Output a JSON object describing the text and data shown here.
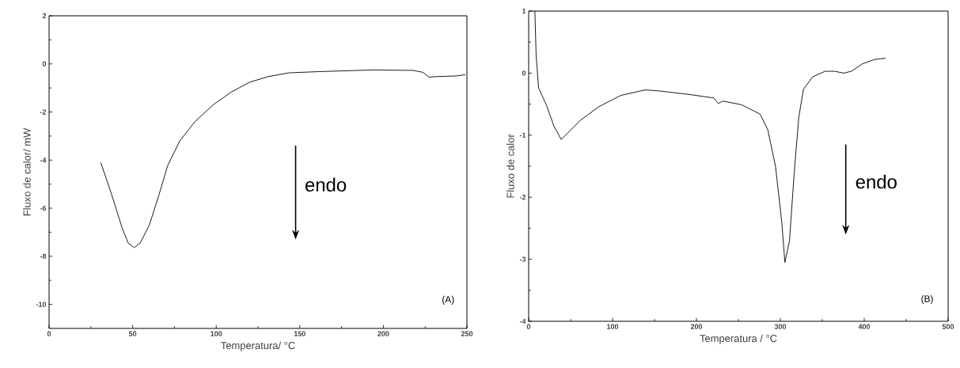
{
  "chart_data": [
    {
      "type": "line",
      "xlabel": "Temperatura/ °C",
      "ylabel": "Fluxo de calor/ mW",
      "annotations": [
        "endo",
        "(A)"
      ],
      "xlim": [
        0,
        250
      ],
      "ylim": [
        -11,
        2
      ],
      "xticks": [
        0,
        50,
        100,
        150,
        200,
        250
      ],
      "yticks": [
        -10,
        -8,
        -6,
        -4,
        -2,
        0,
        2
      ],
      "grid": false,
      "x": [
        30.9,
        37.3,
        43.6,
        47.3,
        50.9,
        54.5,
        60,
        65.5,
        70.9,
        78.2,
        87.3,
        98.2,
        109,
        120,
        131,
        143.6,
        161.8,
        194.5,
        218,
        223.6,
        227.3,
        230.9,
        243.6,
        249
      ],
      "series": [
        {
          "color": "#000000",
          "values": [
            -4.1,
            -5.4,
            -6.8,
            -7.45,
            -7.64,
            -7.45,
            -6.7,
            -5.5,
            -4.24,
            -3.2,
            -2.4,
            -1.7,
            -1.17,
            -0.76,
            -0.53,
            -0.37,
            -0.32,
            -0.25,
            -0.27,
            -0.35,
            -0.55,
            -0.53,
            -0.5,
            -0.45
          ]
        }
      ]
    },
    {
      "type": "line",
      "xlabel": "Temperatura / °C",
      "ylabel": "Fluxo de calor",
      "annotations": [
        "endo",
        "(B)"
      ],
      "xlim": [
        0,
        500
      ],
      "ylim": [
        -4,
        1
      ],
      "xticks": [
        0,
        100,
        200,
        300,
        400,
        500
      ],
      "yticks": [
        -4,
        -3,
        -2,
        -1,
        0,
        1
      ],
      "grid": false,
      "x": [
        7.4,
        8.9,
        11.8,
        21,
        30.3,
        38.8,
        46.9,
        61.7,
        83.8,
        109.7,
        139,
        157.7,
        194.6,
        220.5,
        226,
        231.5,
        253.7,
        275.8,
        285,
        294.3,
        301.7,
        305.4,
        310.9,
        316.5,
        322,
        327.5,
        338.6,
        353.4,
        364.5,
        375.5,
        384.8,
        397.7,
        412.5,
        425.4
      ],
      "series": [
        {
          "color": "#000000",
          "values": [
            1.0,
            0.28,
            -0.24,
            -0.51,
            -0.86,
            -1.07,
            -0.96,
            -0.76,
            -0.54,
            -0.36,
            -0.27,
            -0.29,
            -0.35,
            -0.4,
            -0.49,
            -0.45,
            -0.51,
            -0.66,
            -0.91,
            -1.51,
            -2.4,
            -3.05,
            -2.7,
            -1.61,
            -0.71,
            -0.26,
            -0.06,
            0.03,
            0.03,
            0.0,
            0.03,
            0.15,
            0.22,
            0.24
          ]
        }
      ]
    }
  ]
}
